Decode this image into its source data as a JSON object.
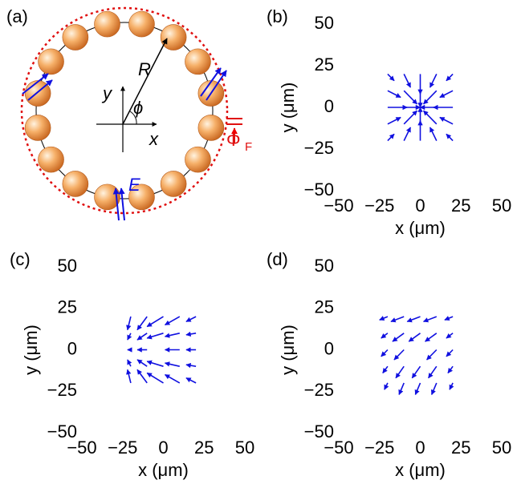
{
  "panel_a": {
    "label": "(a)",
    "radius": "R",
    "y_axis": "y",
    "x_axis": "x",
    "angle": "ϕ",
    "field": "E",
    "flux": "Φ",
    "flux_sub": "F"
  },
  "chart_data": [
    {
      "type": "quiver",
      "panel": "(b)",
      "xlabel": "x (μm)",
      "ylabel": "y (μm)",
      "color": "#1010e0",
      "xlim": [
        -50,
        50
      ],
      "ylim": [
        -50,
        50
      ],
      "xticks": [
        {
          "value": -50,
          "label": "−50"
        },
        {
          "value": -25,
          "label": "−25"
        },
        0,
        25,
        50
      ],
      "yticks": [
        {
          "value": -50,
          "label": "−50"
        },
        {
          "value": -25,
          "label": "−25"
        },
        0,
        25,
        50
      ],
      "x": [
        -20,
        -10,
        0,
        10,
        20,
        -20,
        -10,
        0,
        10,
        20,
        -20,
        -10,
        10,
        20,
        -20,
        -10,
        0,
        10,
        20,
        -20,
        -10,
        0,
        10,
        20
      ],
      "y": [
        20,
        20,
        20,
        20,
        20,
        10,
        10,
        10,
        10,
        10,
        0,
        0,
        0,
        0,
        -10,
        -10,
        -10,
        -10,
        -10,
        -20,
        -20,
        -20,
        -20,
        -20
      ],
      "u": [
        4,
        4,
        0,
        -4,
        -4,
        8,
        8,
        0,
        -8,
        -8,
        12,
        10,
        -10,
        -12,
        8,
        8,
        0,
        -8,
        -8,
        4,
        4,
        0,
        -4,
        -4
      ],
      "v": [
        -4,
        -8,
        -12,
        -8,
        -4,
        -4,
        -8,
        -10,
        -8,
        -4,
        0,
        0,
        0,
        0,
        4,
        8,
        10,
        8,
        4,
        4,
        8,
        12,
        8,
        4
      ]
    },
    {
      "type": "quiver",
      "panel": "(c)",
      "xlabel": "x (μm)",
      "ylabel": "y (μm)",
      "color": "#1010e0",
      "xlim": [
        -50,
        50
      ],
      "ylim": [
        -50,
        50
      ],
      "xticks": [
        {
          "value": -50,
          "label": "−50"
        },
        {
          "value": -25,
          "label": "−25"
        },
        0,
        25,
        50
      ],
      "yticks": [
        {
          "value": -50,
          "label": "−50"
        },
        {
          "value": -25,
          "label": "−25"
        },
        0,
        25,
        50
      ],
      "x": [
        -20,
        -10,
        0,
        10,
        20,
        -20,
        -10,
        0,
        10,
        20,
        -20,
        -10,
        10,
        20,
        -20,
        -10,
        0,
        10,
        20,
        -20,
        -10,
        0,
        10,
        20
      ],
      "y": [
        20,
        20,
        20,
        20,
        20,
        10,
        10,
        10,
        10,
        10,
        0,
        0,
        0,
        0,
        -10,
        -10,
        -10,
        -10,
        -10,
        -20,
        -20,
        -20,
        -20,
        -20
      ],
      "u": [
        -2,
        -6,
        -10,
        -9,
        -6,
        -2,
        -6,
        -10,
        -9,
        -6,
        -2,
        -6,
        -9,
        -6,
        -2,
        -6,
        -10,
        -9,
        -6,
        -2,
        -6,
        -10,
        -9,
        -6
      ],
      "v": [
        -8,
        -8,
        -6,
        -5,
        -3,
        -4,
        -4,
        -3,
        -2,
        -1,
        0,
        0,
        0,
        0,
        4,
        4,
        3,
        2,
        1,
        8,
        8,
        6,
        5,
        3
      ]
    },
    {
      "type": "quiver",
      "panel": "(d)",
      "xlabel": "x (μm)",
      "ylabel": "y (μm)",
      "color": "#1010e0",
      "xlim": [
        -50,
        50
      ],
      "ylim": [
        -50,
        50
      ],
      "xticks": [
        {
          "value": -50,
          "label": "−50"
        },
        {
          "value": -25,
          "label": "−25"
        },
        0,
        25,
        50
      ],
      "yticks": [
        {
          "value": -50,
          "label": "−50"
        },
        {
          "value": -25,
          "label": "−25"
        },
        0,
        25,
        50
      ],
      "x": [
        -20,
        -10,
        0,
        10,
        20,
        -20,
        -10,
        0,
        10,
        20,
        -20,
        -10,
        10,
        20,
        -20,
        -10,
        0,
        10,
        20,
        -20,
        -10,
        0,
        10,
        20
      ],
      "y": [
        20,
        20,
        20,
        20,
        20,
        10,
        10,
        10,
        10,
        10,
        0,
        0,
        0,
        0,
        -10,
        -10,
        -10,
        -10,
        -10,
        -20,
        -20,
        -20,
        -20,
        -20
      ],
      "u": [
        -5,
        -8,
        -8,
        -8,
        -5,
        -4,
        -7,
        -7,
        -7,
        -4,
        -4,
        -6,
        -6,
        -4,
        -3,
        -5,
        -5,
        -5,
        -3,
        -2,
        -3,
        -3,
        -3,
        -2
      ],
      "v": [
        -2,
        -3,
        -3,
        -3,
        -2,
        -3,
        -5,
        -5,
        -5,
        -3,
        -4,
        -6,
        -6,
        -4,
        -4,
        -7,
        -7,
        -7,
        -4,
        -4,
        -7,
        -7,
        -7,
        -4
      ]
    }
  ]
}
